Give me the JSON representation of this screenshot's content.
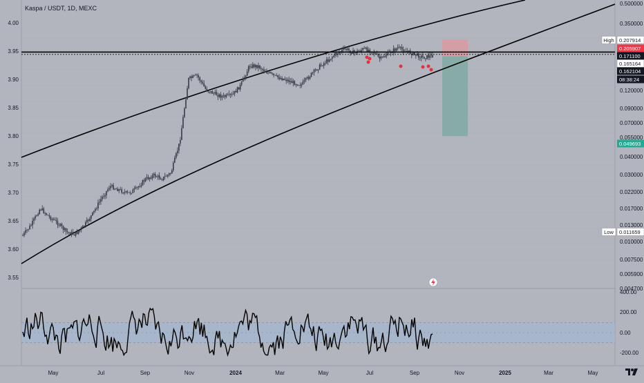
{
  "header": {
    "title": "Kaspa / USDT, 1D, MEXC"
  },
  "colors": {
    "background": "#b2b5be",
    "candle": "#363a45",
    "curve": "#000000",
    "loss_zone": "#d99aa3",
    "profit_zone": "#7faaa5",
    "osc_band": "#a4b6ce",
    "red_marker": "#e0323f"
  },
  "left_axis": {
    "ticks": [
      "4.00",
      "3.95",
      "3.90",
      "3.85",
      "3.80",
      "3.75",
      "3.70",
      "3.65",
      "3.60",
      "3.55"
    ]
  },
  "right_axis": {
    "ticks": [
      "0.500000",
      "0.350000",
      "0.250000",
      "0.120000",
      "0.090000",
      "0.070000",
      "0.055000",
      "0.040000",
      "0.030000",
      "0.022000",
      "0.017000",
      "0.013000",
      "0.010000",
      "0.007500",
      "0.005900",
      "0.004700"
    ],
    "badges": [
      {
        "label": "High",
        "value": "0.207914",
        "style": "outline"
      },
      {
        "label": "",
        "value": "0.205907",
        "style": "red"
      },
      {
        "label": "",
        "value": "0.171100",
        "style": "dark"
      },
      {
        "label": "",
        "value": "0.165164",
        "style": "outline"
      },
      {
        "label": "",
        "value": "0.162104",
        "style": "dark"
      },
      {
        "label": "",
        "value": "08:38:24",
        "style": "dark"
      },
      {
        "label": "",
        "value": "0.049693",
        "style": "green"
      },
      {
        "label": "Low",
        "value": "0.011659",
        "style": "outline"
      }
    ]
  },
  "oscillator": {
    "ticks": [
      "400.00",
      "200.00",
      "0.00",
      "-200.00"
    ]
  },
  "time_axis": {
    "labels": [
      "May",
      "Jul",
      "Sep",
      "Nov",
      "2024",
      "Mar",
      "May",
      "Jul",
      "Sep",
      "Nov",
      "2025",
      "Mar",
      "May"
    ]
  },
  "chart_data": {
    "type": "line",
    "title": "Kaspa / USDT, 1D, MEXC",
    "log_scale": true,
    "series": [
      {
        "name": "",
        "values": [
          0.0115,
          0.0135,
          0.0172,
          0.0152,
          0.0138,
          0.0121,
          0.0117,
          0.0132,
          0.0158,
          0.0198,
          0.0238,
          0.0226,
          0.0213,
          0.0228,
          0.0262,
          0.0279,
          0.0266,
          0.0289,
          0.0455,
          0.115,
          0.121,
          0.0985,
          0.0925,
          0.0885,
          0.0902,
          0.105,
          0.14,
          0.139,
          0.127,
          0.119,
          0.115,
          0.109,
          0.106,
          0.122,
          0.138,
          0.152,
          0.168,
          0.179,
          0.169,
          0.178,
          0.176,
          0.154,
          0.169,
          0.182,
          0.173,
          0.165,
          0.158,
          0.1621
        ]
      }
    ],
    "horizontal_lines": [
      0.1711,
      0.16516
    ],
    "position": {
      "entry": 0.1711,
      "stop": 0.205907,
      "target": 0.049693
    },
    "high": 0.207914,
    "low": 0.011659,
    "oscillator_range": [
      -200,
      400
    ]
  }
}
